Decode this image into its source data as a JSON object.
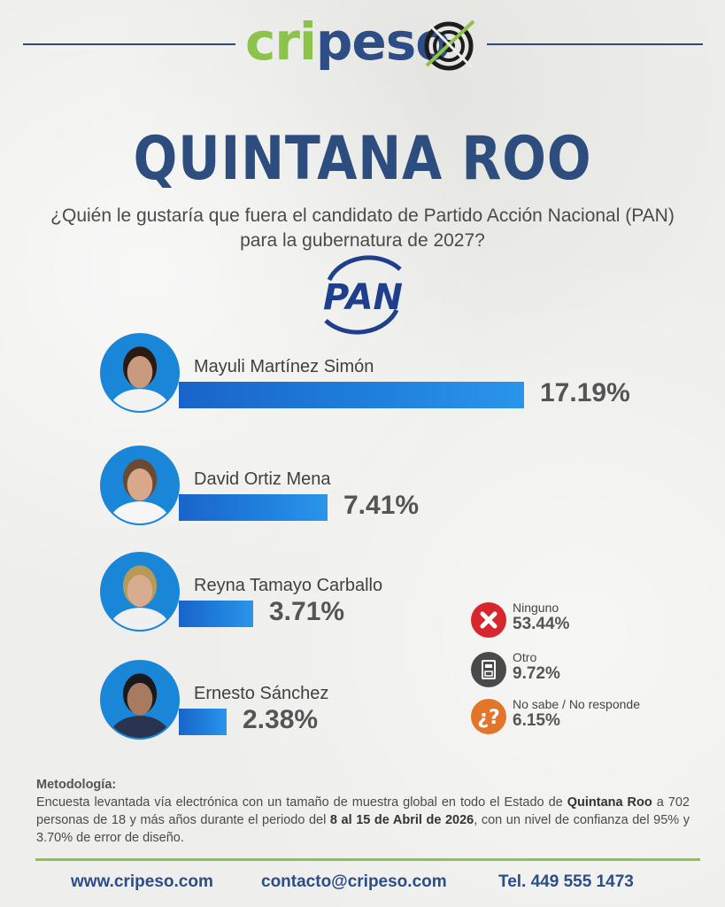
{
  "brand": {
    "name_part1": "cri",
    "name_part2": "peso",
    "color_green": "#8cc34a",
    "color_blue": "#2c4d86"
  },
  "title": "QUINTANA ROO",
  "question_line1": "¿Quién le gustaría que fuera el candidato de Partido Acción Nacional (PAN)",
  "question_line2": "para la gubernatura de 2027?",
  "party_logo_text": "PAN",
  "chart_data": {
    "type": "bar",
    "orientation": "horizontal",
    "title": "",
    "xlabel": "",
    "ylabel": "",
    "xlim": [
      0,
      17.19
    ],
    "categories": [
      "Mayuli Martínez Simón",
      "David Ortiz Mena",
      "Reyna Tamayo Carballo",
      "Ernesto Sánchez"
    ],
    "values": [
      17.19,
      7.41,
      3.71,
      2.38
    ],
    "value_labels": [
      "17.19%",
      "7.41%",
      "3.71%",
      "2.38%"
    ],
    "bar_color": "#1f7fdc",
    "other_responses": [
      {
        "label": "Ninguno",
        "value": 53.44,
        "value_label": "53.44%",
        "icon": "x-circle-icon",
        "color": "#d8262e"
      },
      {
        "label": "Otro",
        "value": 9.72,
        "value_label": "9.72%",
        "icon": "ballot-box-icon",
        "color": "#4a4a4a"
      },
      {
        "label": "No sabe / No responde",
        "value": 6.15,
        "value_label": "6.15%",
        "icon": "question-mark-icon",
        "color": "#e2752a"
      }
    ]
  },
  "methodology": {
    "title": "Metodología:",
    "text_part1": "Encuesta levantada vía electrónica con un tamaño de muestra global en todo el Estado de ",
    "state": "Quintana Roo",
    "text_part2": " a 702 personas de 18 y más años durante el periodo del ",
    "period": "8 al 15 de Abril de 2026",
    "text_part3": ", con un nivel de confianza del 95% y 3.70% de error de diseño."
  },
  "footer": {
    "website": "www.cripeso.com",
    "email": "contacto@cripeso.com",
    "phone": "Tel. 449 555 1473"
  }
}
